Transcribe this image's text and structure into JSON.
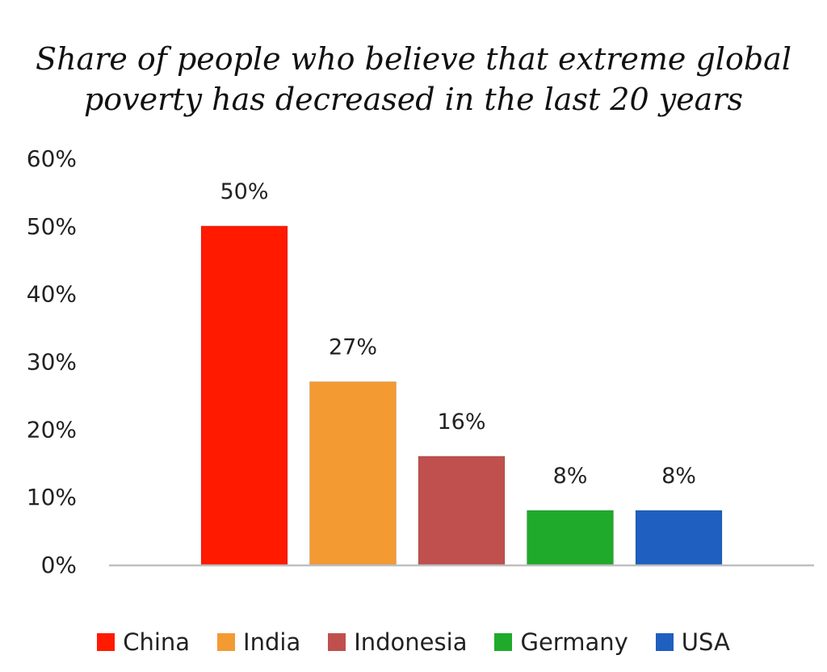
{
  "chart_data": {
    "type": "bar",
    "title_lines": [
      "Share of people who believe that extreme global",
      "poverty has decreased in the last 20 years"
    ],
    "categories": [
      "China",
      "India",
      "Indonesia",
      "Germany",
      "USA"
    ],
    "values": [
      50,
      27,
      16,
      8,
      8
    ],
    "value_labels": [
      "50%",
      "27%",
      "16%",
      "8%",
      "8%"
    ],
    "colors": [
      "#ff1a00",
      "#f39a33",
      "#c0504d",
      "#1faa2c",
      "#1f5fbf"
    ],
    "ylim": [
      0,
      60
    ],
    "yticks": [
      0,
      10,
      20,
      30,
      40,
      50,
      60
    ],
    "ytick_labels": [
      "0%",
      "10%",
      "20%",
      "30%",
      "40%",
      "50%",
      "60%"
    ],
    "xlabel": "",
    "ylabel": "",
    "grid": false,
    "legend_position": "bottom"
  }
}
